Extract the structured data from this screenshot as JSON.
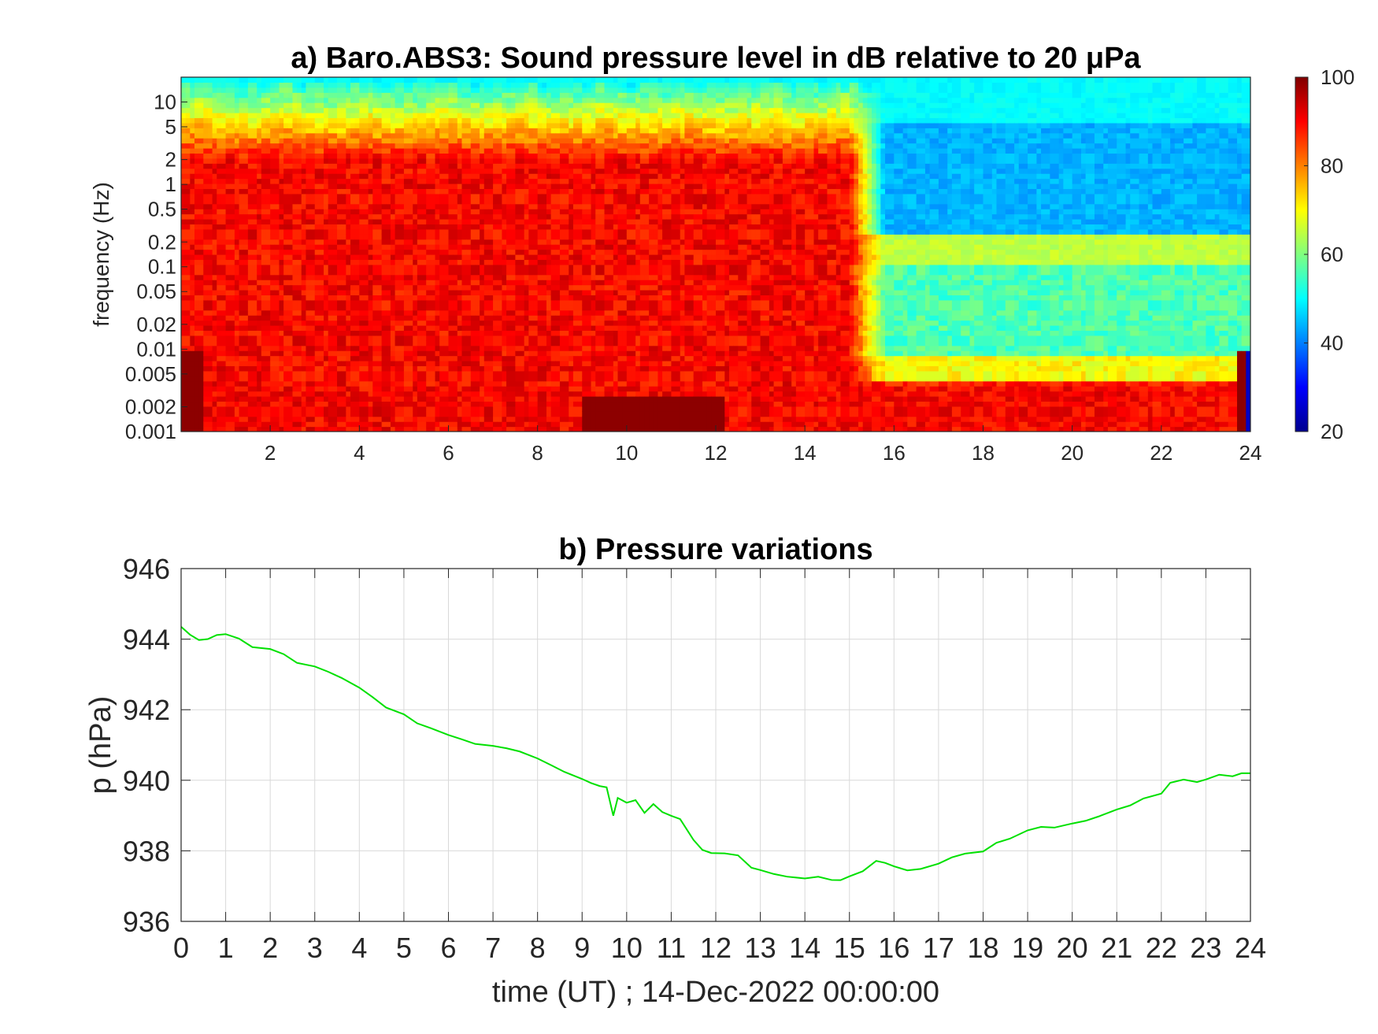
{
  "chart_data": [
    {
      "type": "heatmap",
      "title": "a) Baro.ABS3: Sound pressure level in dB relative to 20 μPa",
      "xlabel": "",
      "ylabel": "frequency (Hz)",
      "x_ticks": [
        2,
        4,
        6,
        8,
        10,
        12,
        14,
        16,
        18,
        20,
        22,
        24
      ],
      "x_range": [
        0,
        24
      ],
      "y_scale": "log",
      "y_ticks": [
        "0.001",
        "0.002",
        "0.005",
        "0.01",
        "0.02",
        "0.05",
        "0.1",
        "0.2",
        "0.5",
        "1",
        "2",
        "5",
        "10"
      ],
      "y_range": [
        0.001,
        20
      ],
      "colorbar": {
        "colormap": "jet",
        "ticks": [
          20,
          40,
          60,
          80,
          100
        ],
        "range": [
          20,
          100
        ]
      },
      "grid": false
    },
    {
      "type": "line",
      "title": "b) Pressure variations",
      "xlabel": "time (UT) ; 14-Dec-2022 00:00:00",
      "ylabel": "p (hPa)",
      "xlim": [
        0,
        24
      ],
      "ylim": [
        936,
        946
      ],
      "x_ticks": [
        0,
        1,
        2,
        3,
        4,
        5,
        6,
        7,
        8,
        9,
        10,
        11,
        12,
        13,
        14,
        15,
        16,
        17,
        18,
        19,
        20,
        21,
        22,
        23,
        24
      ],
      "y_ticks": [
        936,
        938,
        940,
        942,
        944,
        946
      ],
      "grid": true,
      "series": [
        {
          "color": "#00e000",
          "x": [
            0,
            0.2,
            0.4,
            0.6,
            0.8,
            1.0,
            1.3,
            1.6,
            2.0,
            2.3,
            2.6,
            3.0,
            3.3,
            3.6,
            4.0,
            4.3,
            4.6,
            5.0,
            5.3,
            5.6,
            6.0,
            6.3,
            6.6,
            7.0,
            7.3,
            7.6,
            8.0,
            8.3,
            8.6,
            9.0,
            9.2,
            9.4,
            9.55,
            9.7,
            9.8,
            10.0,
            10.2,
            10.4,
            10.6,
            10.8,
            11.0,
            11.2,
            11.5,
            11.7,
            11.9,
            12.2,
            12.5,
            12.8,
            13.0,
            13.3,
            13.6,
            14.0,
            14.3,
            14.6,
            14.8,
            15.0,
            15.3,
            15.6,
            15.8,
            16.0,
            16.3,
            16.6,
            17.0,
            17.3,
            17.6,
            18.0,
            18.3,
            18.6,
            19.0,
            19.3,
            19.6,
            20.0,
            20.3,
            20.6,
            21.0,
            21.3,
            21.6,
            22.0,
            22.2,
            22.5,
            22.8,
            23.0,
            23.3,
            23.6,
            23.8,
            24.0
          ],
          "values": [
            944.35,
            944.15,
            943.95,
            944.0,
            944.1,
            944.15,
            944.0,
            943.8,
            943.7,
            943.55,
            943.35,
            943.2,
            943.1,
            942.9,
            942.6,
            942.35,
            942.05,
            941.85,
            941.6,
            941.45,
            941.3,
            941.15,
            941.05,
            941.0,
            940.9,
            940.8,
            940.6,
            940.45,
            940.25,
            940.05,
            939.95,
            939.85,
            939.8,
            939.0,
            939.5,
            939.35,
            939.45,
            939.05,
            939.35,
            939.1,
            939.0,
            938.9,
            938.3,
            938.05,
            937.95,
            937.95,
            937.9,
            937.55,
            937.45,
            937.35,
            937.25,
            937.2,
            937.25,
            937.2,
            937.15,
            937.25,
            937.45,
            937.7,
            937.65,
            937.55,
            937.45,
            937.5,
            937.65,
            937.8,
            937.95,
            938.0,
            938.2,
            938.35,
            938.6,
            938.65,
            938.65,
            938.75,
            938.85,
            939.0,
            939.15,
            939.3,
            939.5,
            939.65,
            939.95,
            940.05,
            939.95,
            940.05,
            940.15,
            940.1,
            940.2,
            940.2
          ]
        }
      ]
    }
  ]
}
